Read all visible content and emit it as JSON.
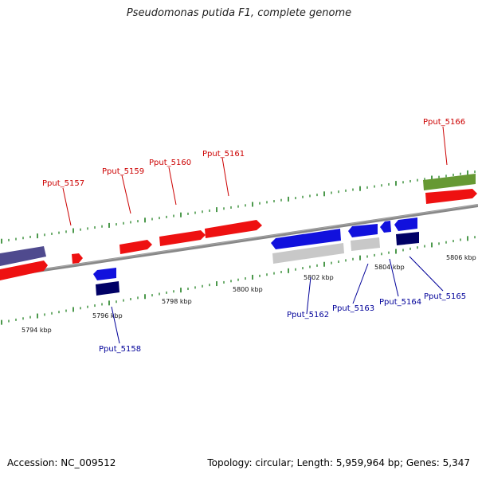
{
  "title": "Pseudomonas putida F1, complete genome",
  "accession": "Accession: NC_009512",
  "topology": "Topology: circular; Length: 5,959,964 bp; Genes: 5,347",
  "colors": {
    "forward_gene": "#ee1111",
    "reverse_gene": "#1111dd",
    "dark_navy": "#000066",
    "gray_feature": "#c8c8c8",
    "olive_feature": "#669933",
    "purple_feature": "#4f4a8e",
    "backbone": "#888888",
    "tick_green": "#117711",
    "label_red": "#cc0000",
    "label_blue": "#000099"
  },
  "scale_labels": [
    "5794 kbp",
    "5796 kbp",
    "5798 kbp",
    "5800 kbp",
    "5802 kbp",
    "5804 kbp",
    "5806 kbp"
  ],
  "gene_labels": {
    "top": [
      "Pput_5157",
      "Pput_5159",
      "Pput_5160",
      "Pput_5161",
      "Pput_5166"
    ],
    "bottom": [
      "Pput_5158",
      "Pput_5162",
      "Pput_5163",
      "Pput_5164",
      "Pput_5165"
    ]
  }
}
